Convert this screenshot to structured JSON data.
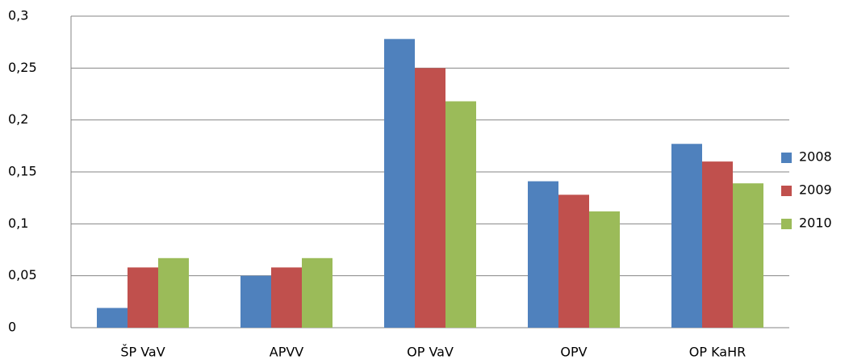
{
  "chart_data": {
    "type": "bar",
    "categories": [
      "ŠP VaV",
      "APVV",
      "OP VaV",
      "OPV",
      "OP KaHR"
    ],
    "series": [
      {
        "name": "2008",
        "color": "#4f81bd",
        "values": [
          0.019,
          0.05,
          0.278,
          0.141,
          0.177
        ]
      },
      {
        "name": "2009",
        "color": "#c0504d",
        "values": [
          0.058,
          0.058,
          0.25,
          0.128,
          0.16
        ]
      },
      {
        "name": "2010",
        "color": "#9bbb59",
        "values": [
          0.067,
          0.067,
          0.218,
          0.112,
          0.139
        ]
      }
    ],
    "ylim": [
      0,
      0.3
    ],
    "yticks": [
      0,
      {
        "value": 0.05,
        "label": "0,05"
      },
      {
        "value": 0.1,
        "label": "0,1"
      },
      {
        "value": 0.15,
        "label": "0,15"
      },
      {
        "value": 0.2,
        "label": "0,2"
      },
      {
        "value": 0.25,
        "label": "0,25"
      },
      {
        "value": 0.3,
        "label": "0,3"
      }
    ],
    "grid": true,
    "legend": "right"
  }
}
